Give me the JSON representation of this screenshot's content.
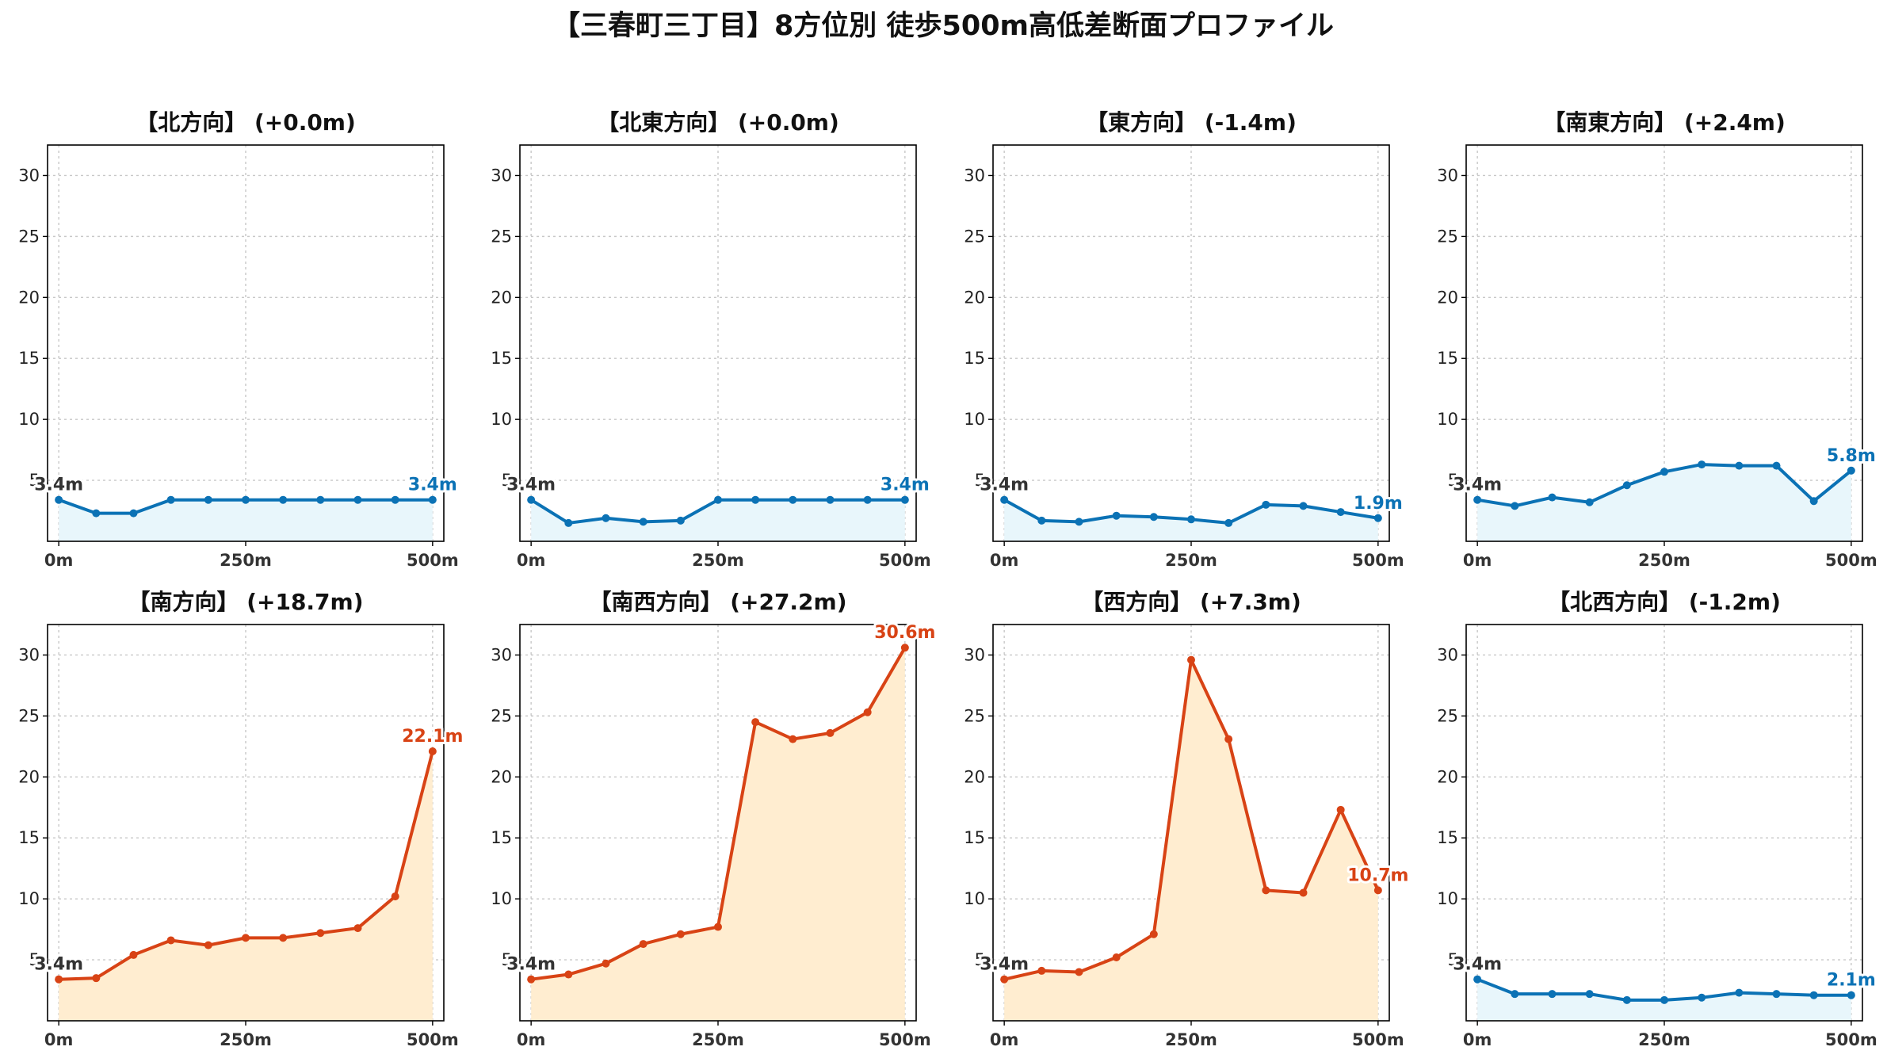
{
  "page": {
    "title": "【三春町三丁目】8方位別 徒歩500m高低差断面プロファイル"
  },
  "colors": {
    "down_line": "#1f77b4",
    "down_line_dark": "#0b72b5",
    "down_fill": "#e8f6fb",
    "up_line": "#d84315",
    "up_fill": "#ffedd0",
    "start_label": "#333333"
  },
  "chart_data": [
    {
      "type": "area",
      "title": "【北方向】 (+0.0m)",
      "trend": "down",
      "x": [
        0,
        50,
        100,
        150,
        200,
        250,
        300,
        350,
        400,
        450,
        500
      ],
      "y": [
        3.4,
        2.3,
        2.3,
        3.4,
        3.4,
        3.4,
        3.4,
        3.4,
        3.4,
        3.4,
        3.4
      ],
      "start_label": "3.4m",
      "end_label": "3.4m",
      "xticks": [
        "0m",
        "250m",
        "500m"
      ],
      "yticks": [
        "5",
        "10",
        "15",
        "20",
        "25",
        "30"
      ],
      "xlim": [
        -15,
        515
      ],
      "ylim": [
        0,
        32.5
      ],
      "grid": true
    },
    {
      "type": "area",
      "title": "【北東方向】 (+0.0m)",
      "trend": "down",
      "x": [
        0,
        50,
        100,
        150,
        200,
        250,
        300,
        350,
        400,
        450,
        500
      ],
      "y": [
        3.4,
        1.5,
        1.9,
        1.6,
        1.7,
        3.4,
        3.4,
        3.4,
        3.4,
        3.4,
        3.4
      ],
      "start_label": "3.4m",
      "end_label": "3.4m",
      "xticks": [
        "0m",
        "250m",
        "500m"
      ],
      "yticks": [
        "5",
        "10",
        "15",
        "20",
        "25",
        "30"
      ],
      "xlim": [
        -15,
        515
      ],
      "ylim": [
        0,
        32.5
      ],
      "grid": true
    },
    {
      "type": "area",
      "title": "【東方向】 (-1.4m)",
      "trend": "down",
      "x": [
        0,
        50,
        100,
        150,
        200,
        250,
        300,
        350,
        400,
        450,
        500
      ],
      "y": [
        3.4,
        1.7,
        1.6,
        2.1,
        2.0,
        1.8,
        1.5,
        3.0,
        2.9,
        2.4,
        1.9
      ],
      "start_label": "3.4m",
      "end_label": "1.9m",
      "xticks": [
        "0m",
        "250m",
        "500m"
      ],
      "yticks": [
        "5",
        "10",
        "15",
        "20",
        "25",
        "30"
      ],
      "xlim": [
        -15,
        515
      ],
      "ylim": [
        0,
        32.5
      ],
      "grid": true
    },
    {
      "type": "area",
      "title": "【南東方向】 (+2.4m)",
      "trend": "down",
      "x": [
        0,
        50,
        100,
        150,
        200,
        250,
        300,
        350,
        400,
        450,
        500
      ],
      "y": [
        3.4,
        2.9,
        3.6,
        3.2,
        4.6,
        5.7,
        6.3,
        6.2,
        6.2,
        3.3,
        5.8
      ],
      "start_label": "3.4m",
      "end_label": "5.8m",
      "xticks": [
        "0m",
        "250m",
        "500m"
      ],
      "yticks": [
        "5",
        "10",
        "15",
        "20",
        "25",
        "30"
      ],
      "xlim": [
        -15,
        515
      ],
      "ylim": [
        0,
        32.5
      ],
      "grid": true
    },
    {
      "type": "area",
      "title": "【南方向】 (+18.7m)",
      "trend": "up",
      "x": [
        0,
        50,
        100,
        150,
        200,
        250,
        300,
        350,
        400,
        450,
        500
      ],
      "y": [
        3.4,
        3.5,
        5.4,
        6.6,
        6.2,
        6.8,
        6.8,
        7.2,
        7.6,
        10.2,
        22.1
      ],
      "start_label": "3.4m",
      "end_label": "22.1m",
      "xticks": [
        "0m",
        "250m",
        "500m"
      ],
      "yticks": [
        "5",
        "10",
        "15",
        "20",
        "25",
        "30"
      ],
      "xlim": [
        -15,
        515
      ],
      "ylim": [
        0,
        32.5
      ],
      "grid": true
    },
    {
      "type": "area",
      "title": "【南西方向】 (+27.2m)",
      "trend": "up",
      "x": [
        0,
        50,
        100,
        150,
        200,
        250,
        300,
        350,
        400,
        450,
        500
      ],
      "y": [
        3.4,
        3.8,
        4.7,
        6.3,
        7.1,
        7.7,
        24.5,
        23.1,
        23.6,
        25.3,
        30.6
      ],
      "start_label": "3.4m",
      "end_label": "30.6m",
      "xticks": [
        "0m",
        "250m",
        "500m"
      ],
      "yticks": [
        "5",
        "10",
        "15",
        "20",
        "25",
        "30"
      ],
      "xlim": [
        -15,
        515
      ],
      "ylim": [
        0,
        32.5
      ],
      "grid": true
    },
    {
      "type": "area",
      "title": "【西方向】 (+7.3m)",
      "trend": "up",
      "x": [
        0,
        50,
        100,
        150,
        200,
        250,
        300,
        350,
        400,
        450,
        500
      ],
      "y": [
        3.4,
        4.1,
        4.0,
        5.2,
        7.1,
        29.6,
        23.1,
        10.7,
        10.5,
        17.3,
        10.7
      ],
      "start_label": "3.4m",
      "end_label": "10.7m",
      "xticks": [
        "0m",
        "250m",
        "500m"
      ],
      "yticks": [
        "5",
        "10",
        "15",
        "20",
        "25",
        "30"
      ],
      "xlim": [
        -15,
        515
      ],
      "ylim": [
        0,
        32.5
      ],
      "grid": true
    },
    {
      "type": "area",
      "title": "【北西方向】 (-1.2m)",
      "trend": "down",
      "x": [
        0,
        50,
        100,
        150,
        200,
        250,
        300,
        350,
        400,
        450,
        500
      ],
      "y": [
        3.4,
        2.2,
        2.2,
        2.2,
        1.7,
        1.7,
        1.9,
        2.3,
        2.2,
        2.1,
        2.1
      ],
      "start_label": "3.4m",
      "end_label": "2.1m",
      "xticks": [
        "0m",
        "250m",
        "500m"
      ],
      "yticks": [
        "5",
        "10",
        "15",
        "20",
        "25",
        "30"
      ],
      "xlim": [
        -15,
        515
      ],
      "ylim": [
        0,
        32.5
      ],
      "grid": true
    }
  ]
}
